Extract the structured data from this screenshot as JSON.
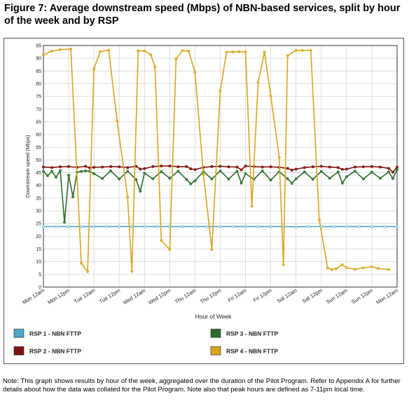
{
  "figure": {
    "title": "Figure 7: Average downstream speed (Mbps) of NBN-based services, split by hour of the week and by RSP",
    "note": "Note: This graph shows results by hour of the week, aggregated over the duration of the Pilot Program. Refer to Appendix A for further details about how the data was collated for the Pilot Program. Note also that peak hours are defined as 7-11pm local time."
  },
  "chart_data": {
    "type": "line",
    "xlabel": "Hour of Week",
    "ylabel": "Downstream speed (Mbps)",
    "xlim": [
      0,
      168
    ],
    "ylim": [
      0,
      95
    ],
    "y_ticks": [
      0,
      5,
      10,
      15,
      20,
      25,
      30,
      35,
      40,
      45,
      50,
      55,
      60,
      65,
      70,
      75,
      80,
      85,
      90,
      95
    ],
    "x_tick_positions": [
      0,
      12,
      24,
      36,
      48,
      60,
      72,
      84,
      96,
      108,
      120,
      132,
      144,
      156,
      168
    ],
    "x_tick_labels": [
      "Mon 12am",
      "Mon 12pm",
      "Tue 12am",
      "Tue 12pm",
      "Wed 12am",
      "Wed 12pm",
      "Thu 12am",
      "Thu 12pm",
      "Fri 12am",
      "Fri 12pm",
      "Sat 12am",
      "Sat 12pm",
      "Sun 12am",
      "Sun 12pm",
      "Mon 12am"
    ],
    "grid": true,
    "legend_position": "bottom",
    "series": [
      {
        "name": "RSP 1 - NBN FTTP",
        "color": "#4BA8C2",
        "marker_color": "#ffffff",
        "x": [
          0,
          6,
          12,
          18,
          24,
          30,
          36,
          42,
          48,
          54,
          60,
          66,
          72,
          78,
          84,
          90,
          96,
          102,
          108,
          114,
          120,
          126,
          132,
          138,
          144,
          150,
          156,
          162,
          168
        ],
        "y": [
          23.8,
          23.8,
          23.8,
          23.8,
          23.8,
          23.8,
          23.8,
          23.8,
          23.8,
          23.8,
          23.8,
          23.8,
          23.8,
          23.8,
          23.8,
          23.8,
          23.8,
          23.8,
          23.8,
          23.8,
          23.7,
          23.8,
          23.8,
          23.8,
          23.8,
          23.8,
          23.8,
          23.8,
          23.8
        ]
      },
      {
        "name": "RSP 2 - NBN FTTP",
        "color": "#7A1414",
        "marker_color": "#9b1c1c",
        "x": [
          0,
          4,
          8,
          12,
          16,
          20,
          22,
          24,
          28,
          32,
          36,
          40,
          44,
          46,
          48,
          52,
          56,
          60,
          64,
          68,
          70,
          72,
          76,
          80,
          84,
          88,
          92,
          94,
          96,
          100,
          104,
          108,
          112,
          116,
          118,
          120,
          124,
          128,
          132,
          136,
          140,
          142,
          144,
          148,
          152,
          156,
          160,
          164,
          166,
          168
        ],
        "y": [
          47.2,
          47,
          47.3,
          47.4,
          47.1,
          47.5,
          46.9,
          47.1,
          47.2,
          47.4,
          47.3,
          47,
          47.5,
          46.4,
          46.6,
          47.4,
          47.6,
          47.6,
          47.3,
          47.4,
          46.5,
          46.2,
          47.1,
          47.4,
          47.5,
          47.3,
          47.2,
          46.1,
          47.6,
          47.4,
          47.2,
          47.3,
          47.1,
          46.7,
          46.0,
          46.4,
          47.0,
          47.3,
          47.5,
          47.2,
          47.0,
          46.3,
          46.4,
          47.2,
          47.3,
          47.4,
          47.2,
          46.7,
          45.2,
          47.2
        ]
      },
      {
        "name": "RSP 3 - NBN FTTP",
        "color": "#2E6B30",
        "marker_color": "#3d8f40",
        "x": [
          0,
          2,
          4,
          6,
          8,
          10,
          12,
          14,
          16,
          18,
          20,
          22,
          24,
          28,
          32,
          36,
          40,
          44,
          46,
          48,
          52,
          56,
          60,
          64,
          68,
          70,
          72,
          76,
          80,
          84,
          88,
          92,
          94,
          96,
          100,
          104,
          108,
          112,
          116,
          118,
          120,
          124,
          128,
          132,
          136,
          140,
          142,
          144,
          148,
          152,
          156,
          160,
          164,
          166,
          168
        ],
        "y": [
          45.5,
          43.8,
          45.5,
          43.2,
          45.8,
          25.5,
          44,
          35.5,
          45.2,
          45.5,
          45.7,
          45.6,
          44.6,
          42.7,
          45.7,
          42.5,
          45.6,
          42.3,
          37.7,
          44.8,
          42.6,
          45.4,
          42.8,
          45.6,
          42.3,
          40.6,
          41.8,
          45.4,
          42.5,
          45.7,
          42.5,
          45.6,
          40.9,
          44.6,
          42.4,
          45.7,
          42.1,
          45.4,
          42.6,
          40.8,
          42.6,
          45.3,
          42.4,
          45.5,
          42.8,
          45.3,
          40.9,
          43.4,
          45.6,
          42.5,
          45.2,
          42.8,
          45.3,
          42.7,
          46.2
        ]
      },
      {
        "name": "RSP 4 - NBN FTTP",
        "color": "#D9A520",
        "marker_color": "#e8b23a",
        "x": [
          0,
          4,
          8,
          13,
          18,
          21,
          24,
          27,
          31,
          35,
          40,
          42,
          45,
          48,
          51,
          53,
          56,
          60,
          63,
          66,
          69,
          72,
          76,
          80,
          84,
          87,
          90,
          93,
          96,
          99,
          102,
          105,
          108,
          112,
          114,
          116,
          120,
          123,
          127,
          131,
          135,
          137,
          139,
          142,
          144,
          148,
          152,
          156,
          159,
          164
        ],
        "y": [
          91.4,
          92.8,
          93.4,
          93.6,
          9.4,
          6.1,
          85.8,
          92.6,
          93.2,
          65.4,
          35.4,
          6.2,
          92.9,
          92.9,
          91.4,
          86.6,
          18.3,
          14.8,
          89.7,
          93.0,
          92.8,
          84.5,
          44.2,
          14.8,
          77.1,
          92.4,
          92.5,
          92.6,
          92.5,
          31.8,
          80.5,
          92.4,
          75.2,
          51.0,
          8.8,
          91.0,
          93.1,
          93.1,
          93.1,
          26.4,
          7.6,
          6.9,
          7.2,
          8.8,
          7.6,
          7.0,
          7.6,
          8.0,
          7.3,
          6.9
        ]
      }
    ]
  }
}
